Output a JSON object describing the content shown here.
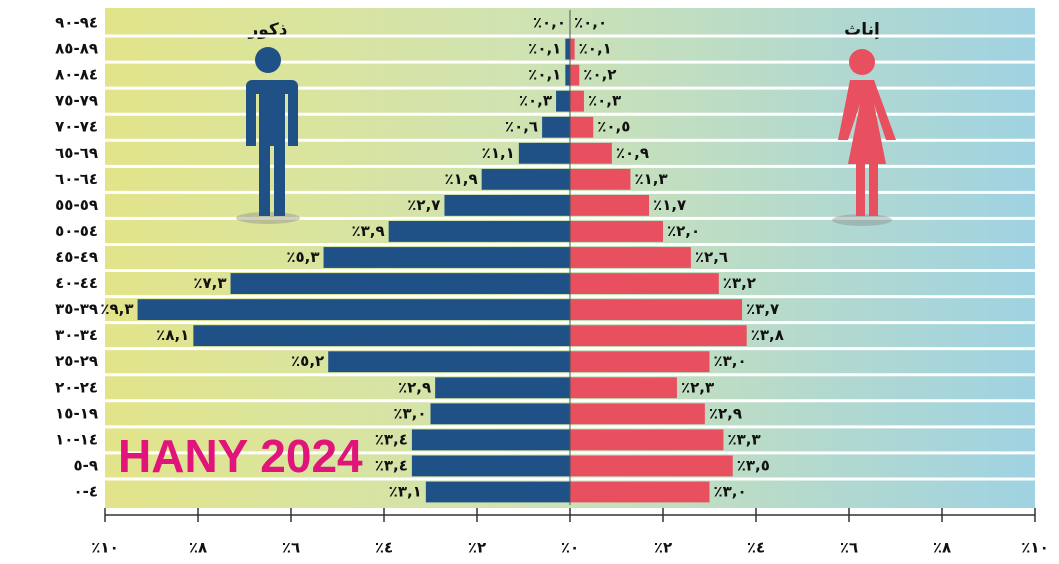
{
  "chart_data": {
    "type": "pyramid",
    "categories": [
      "٩٤-٩٠",
      "٨٩-٨٥",
      "٨٤-٨٠",
      "٧٩-٧٥",
      "٧٤-٧٠",
      "٦٩-٦٥",
      "٦٤-٦٠",
      "٥٩-٥٥",
      "٥٤-٥٠",
      "٤٩-٤٥",
      "٤٤-٤٠",
      "٣٩-٣٥",
      "٣٤-٣٠",
      "٢٩-٢٥",
      "٢٤-٢٠",
      "١٩-١٥",
      "١٤-١٠",
      "٩-٥",
      "٤-٠"
    ],
    "series": [
      {
        "name": "ذكور",
        "color": "#1f5186",
        "values": [
          0.0,
          0.1,
          0.1,
          0.3,
          0.6,
          1.1,
          1.9,
          2.7,
          3.9,
          5.3,
          7.3,
          9.3,
          8.1,
          5.2,
          2.9,
          3.0,
          3.4,
          3.4,
          3.1
        ],
        "value_labels": [
          "٪٠,٠",
          "٪٠,١",
          "٪٠,١",
          "٪٠,٣",
          "٪٠,٦",
          "٪١,١",
          "٪١,٩",
          "٪٢,٧",
          "٪٣,٩",
          "٪٥,٣",
          "٪٧,٣",
          "٪٩,٣",
          "٪٨,١",
          "٪٥,٢",
          "٪٢,٩",
          "٪٣,٠",
          "٪٣,٤",
          "٪٣,٤",
          "٪٣,١"
        ]
      },
      {
        "name": "إناث",
        "color": "#e8505f",
        "values": [
          0.0,
          0.1,
          0.2,
          0.3,
          0.5,
          0.9,
          1.3,
          1.7,
          2.0,
          2.6,
          3.2,
          3.7,
          3.8,
          3.0,
          2.3,
          2.9,
          3.3,
          3.5,
          3.0
        ],
        "value_labels": [
          "٪٠,٠",
          "٪٠,١",
          "٪٠,٢",
          "٪٠,٣",
          "٪٠,٥",
          "٪٠,٩",
          "٪١,٣",
          "٪١,٧",
          "٪٢,٠",
          "٪٢,٦",
          "٪٣,٢",
          "٪٣,٧",
          "٪٣,٨",
          "٪٣,٠",
          "٪٢,٣",
          "٪٢,٩",
          "٪٣,٣",
          "٪٣,٥",
          "٪٣,٠"
        ]
      }
    ],
    "xlim": [
      -10,
      10
    ],
    "xticks": [
      {
        "value": -10,
        "label": "٪١٠"
      },
      {
        "value": -8,
        "label": "٪٨"
      },
      {
        "value": -6,
        "label": "٪٦"
      },
      {
        "value": -4,
        "label": "٪٤"
      },
      {
        "value": -2,
        "label": "٪٢"
      },
      {
        "value": 0,
        "label": "٪٠"
      },
      {
        "value": 2,
        "label": "٪٢"
      },
      {
        "value": 4,
        "label": "٪٤"
      },
      {
        "value": 6,
        "label": "٪٦"
      },
      {
        "value": 8,
        "label": "٪٨"
      },
      {
        "value": 10,
        "label": "٪١٠"
      }
    ],
    "annotation": "HANY 2024"
  }
}
